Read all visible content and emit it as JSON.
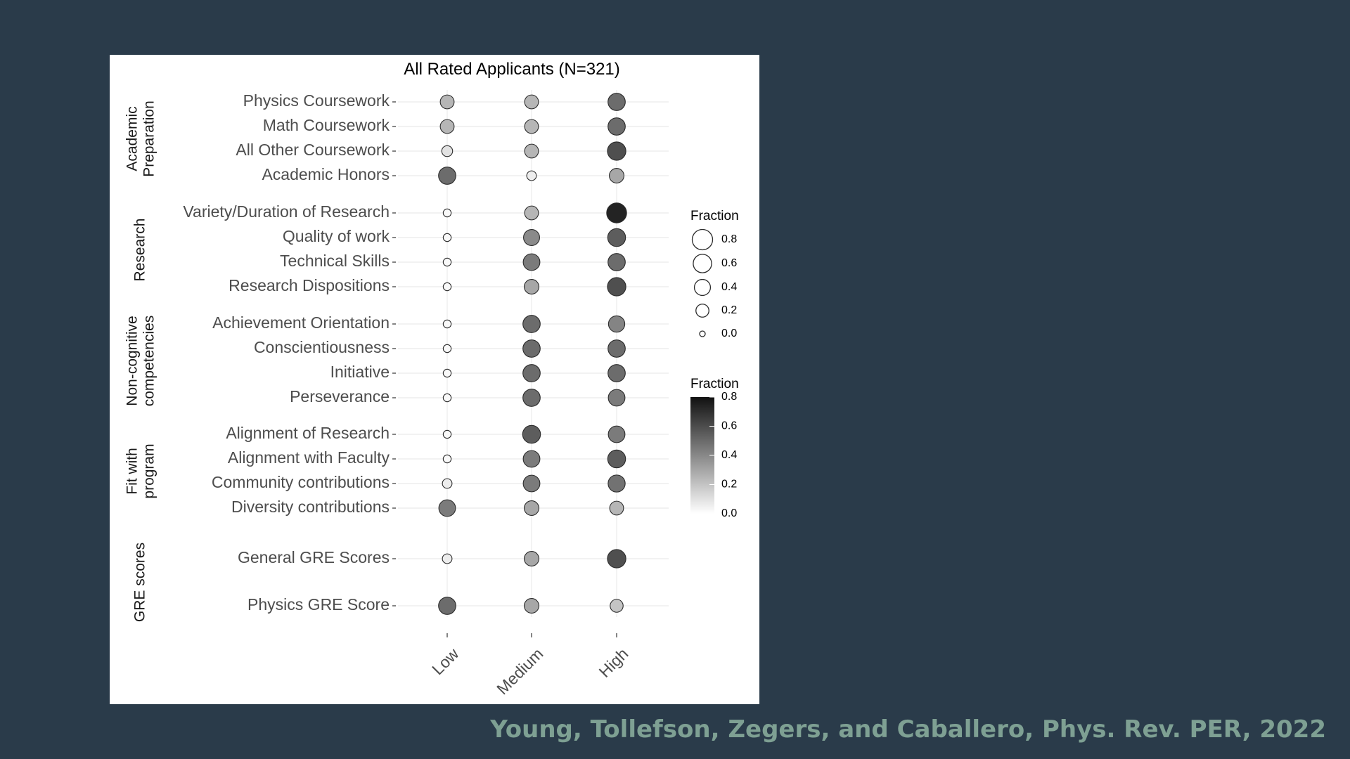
{
  "citation": "Young, Tollefson, Zegers, and Caballero, Phys. Rev. PER, 2022",
  "chart_data": {
    "type": "scatter",
    "title": "All Rated Applicants (N=321)",
    "x_categories": [
      "Low",
      "Medium",
      "High"
    ],
    "groups": [
      {
        "name": "Academic Preparation",
        "items": [
          "Physics Coursework",
          "Math Coursework",
          "All Other Coursework",
          "Academic Honors"
        ]
      },
      {
        "name": "Research",
        "items": [
          "Variety/Duration of Research",
          "Quality of work",
          "Technical Skills",
          "Research Dispositions"
        ]
      },
      {
        "name": "Non-cognitive competencies",
        "items": [
          "Achievement Orientation",
          "Conscientiousness",
          "Initiative",
          "Perseverance"
        ]
      },
      {
        "name": "Fit with program",
        "items": [
          "Alignment of Research",
          "Alignment with Faculty",
          "Community contributions",
          "Diversity contributions"
        ]
      },
      {
        "name": "GRE scores",
        "items": [
          "General GRE Scores",
          "Physics GRE Score"
        ]
      }
    ],
    "values": {
      "Physics Coursework": [
        0.25,
        0.25,
        0.5
      ],
      "Math Coursework": [
        0.25,
        0.25,
        0.5
      ],
      "All Other Coursework": [
        0.1,
        0.25,
        0.6
      ],
      "Academic Honors": [
        0.5,
        0.06,
        0.3
      ],
      "Variety/Duration of Research": [
        0.02,
        0.25,
        0.75
      ],
      "Quality of work": [
        0.02,
        0.4,
        0.55
      ],
      "Technical Skills": [
        0.02,
        0.45,
        0.5
      ],
      "Research Dispositions": [
        0.02,
        0.3,
        0.6
      ],
      "Achievement Orientation": [
        0.02,
        0.5,
        0.42
      ],
      "Conscientiousness": [
        0.02,
        0.5,
        0.5
      ],
      "Initiative": [
        0.02,
        0.5,
        0.5
      ],
      "Perseverance": [
        0.02,
        0.5,
        0.45
      ],
      "Alignment of Research": [
        0.02,
        0.55,
        0.45
      ],
      "Alignment with Faculty": [
        0.02,
        0.45,
        0.55
      ],
      "Community contributions": [
        0.06,
        0.45,
        0.48
      ],
      "Diversity contributions": [
        0.45,
        0.3,
        0.25
      ],
      "General GRE Scores": [
        0.06,
        0.3,
        0.6
      ],
      "Physics GRE Score": [
        0.5,
        0.3,
        0.2
      ]
    },
    "legend_size": {
      "title": "Fraction",
      "ticks": [
        0.8,
        0.6,
        0.4,
        0.2,
        0.0
      ],
      "labels": [
        "0.8",
        "0.6",
        "0.4",
        "0.2",
        "0.0"
      ]
    },
    "legend_color": {
      "title": "Fraction",
      "ticks": [
        0.8,
        0.6,
        0.4,
        0.2,
        0.0
      ],
      "labels": [
        "0.8",
        "0.6",
        "0.4",
        "0.2",
        "0.0"
      ],
      "range": [
        0,
        0.8
      ]
    },
    "grid": true,
    "legend_position": "right"
  }
}
